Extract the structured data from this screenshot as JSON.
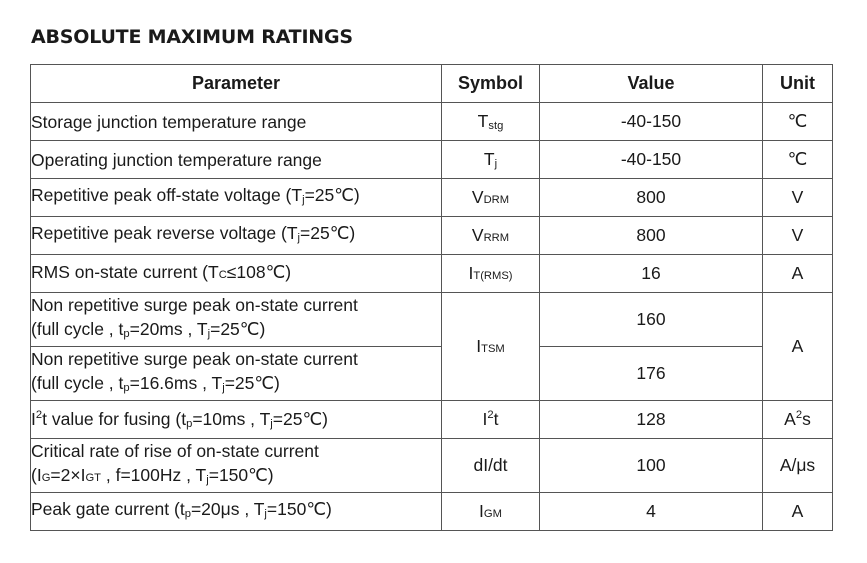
{
  "section_title": "ABSOLUTE MAXIMUM RATINGS",
  "headers": {
    "parameter": "Parameter",
    "symbol": "Symbol",
    "value": "Value",
    "unit": "Unit"
  },
  "rows": {
    "tstg": {
      "param": "Storage junction temperature range",
      "sym_main": "T",
      "sym_sub": "stg",
      "value": "-40-150",
      "unit": "℃"
    },
    "tj": {
      "param": "Operating junction temperature range",
      "sym_main": "T",
      "sym_sub": "j",
      "value": "-40-150",
      "unit": "℃"
    },
    "vdrm": {
      "param_a": "Repetitive peak off-state voltage (T",
      "param_sub": "j",
      "param_b": "=25℃)",
      "sym_main": "V",
      "sym_sub": "DRM",
      "value": "800",
      "unit": "V"
    },
    "vrrm": {
      "param_a": "Repetitive peak reverse voltage (T",
      "param_sub": "j",
      "param_b": "=25℃)",
      "sym_main": "V",
      "sym_sub": "RRM",
      "value": "800",
      "unit": "V"
    },
    "irms": {
      "param_a": "RMS on-state current (T",
      "param_sub": "C",
      "param_b": "≤108℃)",
      "sym_main": "I",
      "sym_sub": "T(RMS)",
      "value": "16",
      "unit": "A"
    },
    "itsm1": {
      "line1": "Non repetitive surge peak on-state current",
      "line2_a": "(full cycle , t",
      "line2_sub1": "p",
      "line2_b": "=20ms , T",
      "line2_sub2": "j",
      "line2_c": "=25℃)",
      "value": "160"
    },
    "itsm2": {
      "line1": "Non repetitive surge peak on-state current",
      "line2_a": "(full cycle , t",
      "line2_sub1": "p",
      "line2_b": "=16.6ms , T",
      "line2_sub2": "j",
      "line2_c": "=25℃)",
      "value": "176"
    },
    "itsm_symbol": {
      "sym_main": "I",
      "sym_sub": "TSM"
    },
    "itsm_unit": "A",
    "i2t": {
      "param_a": "I",
      "param_sup": "2",
      "param_b": "t value for fusing (t",
      "param_sub1": "p",
      "param_c": "=10ms , T",
      "param_sub2": "j",
      "param_d": "=25℃)",
      "sym_main": "I",
      "sym_sup": "2",
      "sym_tail": "t",
      "value": "128",
      "unit_main": "A",
      "unit_sup": "2",
      "unit_tail": "s"
    },
    "didt": {
      "line1": "Critical rate of rise of on-state current",
      "line2_a": "(I",
      "line2_sub1": "G",
      "line2_b": "=2×I",
      "line2_sub2": "GT",
      "line2_c": " , f=100Hz , T",
      "line2_sub3": "j",
      "line2_d": "=150℃)",
      "symbol": "dI/dt",
      "value": "100",
      "unit": "A/μs"
    },
    "igm": {
      "param_a": "Peak gate current (t",
      "param_sub1": "p",
      "param_b": "=20μs , T",
      "param_sub2": "j",
      "param_c": "=150℃)",
      "sym_main": "I",
      "sym_sub": "GM",
      "value": "4",
      "unit": "A"
    }
  }
}
